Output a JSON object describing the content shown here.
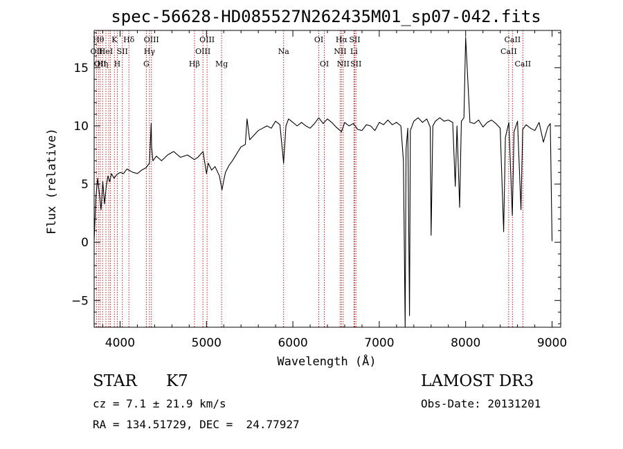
{
  "chart_data": {
    "type": "line",
    "title": "spec-56628-HD085527N262435M01_sp07-042.fits",
    "xlabel": "Wavelength (Å)",
    "ylabel": "Flux (relative)",
    "xlim": [
      3700,
      9100
    ],
    "ylim": [
      -7.3,
      18.2
    ],
    "xticks": [
      4000,
      5000,
      6000,
      7000,
      8000,
      9000
    ],
    "yticks": [
      -5,
      0,
      5,
      10,
      15
    ],
    "grid": false,
    "line_color": "#000000",
    "marker_color": "#b22222",
    "series": [
      {
        "x": [
          3700,
          3720,
          3740,
          3760,
          3780,
          3800,
          3820,
          3840,
          3860,
          3880,
          3900,
          3930,
          3960,
          4000,
          4040,
          4080,
          4100,
          4150,
          4200,
          4250,
          4300,
          4340,
          4360,
          4365,
          4380,
          4420,
          4480,
          4550,
          4620,
          4700,
          4780,
          4860,
          4900,
          4960,
          5000,
          5020,
          5060,
          5100,
          5150,
          5180,
          5200,
          5220,
          5260,
          5300,
          5350,
          5400,
          5450,
          5470,
          5500,
          5550,
          5600,
          5650,
          5700,
          5750,
          5800,
          5850,
          5893,
          5920,
          5950,
          6000,
          6050,
          6100,
          6150,
          6200,
          6250,
          6300,
          6350,
          6400,
          6450,
          6500,
          6563,
          6600,
          6650,
          6700,
          6750,
          6800,
          6850,
          6900,
          6950,
          7000,
          7050,
          7100,
          7150,
          7200,
          7250,
          7280,
          7300,
          7310,
          7330,
          7350,
          7360,
          7400,
          7450,
          7500,
          7550,
          7590,
          7600,
          7620,
          7650,
          7700,
          7750,
          7800,
          7850,
          7880,
          7900,
          7930,
          7950,
          7980,
          8000,
          8050,
          8100,
          8150,
          8200,
          8250,
          8300,
          8350,
          8400,
          8440,
          8460,
          8500,
          8540,
          8560,
          8600,
          8640,
          8660,
          8700,
          8750,
          8800,
          8850,
          8900,
          8950,
          8980,
          9000
        ],
        "y": [
          0.2,
          3.8,
          5.5,
          4.2,
          2.8,
          5.2,
          3.3,
          4.8,
          5.7,
          5.2,
          5.9,
          5.5,
          5.8,
          6.0,
          5.9,
          6.3,
          6.2,
          6.0,
          5.9,
          6.2,
          6.4,
          6.8,
          10.2,
          8.2,
          7.0,
          7.4,
          7.0,
          7.5,
          7.8,
          7.3,
          7.5,
          7.1,
          7.3,
          7.8,
          5.9,
          6.8,
          6.2,
          6.5,
          5.7,
          4.5,
          5.3,
          6.0,
          6.6,
          7.0,
          7.6,
          8.2,
          8.4,
          10.6,
          8.8,
          9.2,
          9.6,
          9.8,
          10.0,
          9.8,
          10.4,
          10.1,
          6.8,
          10.0,
          10.6,
          10.3,
          10.0,
          10.3,
          10.0,
          9.8,
          10.2,
          10.7,
          10.2,
          10.6,
          10.3,
          9.9,
          9.5,
          10.3,
          10.0,
          10.2,
          9.7,
          9.6,
          10.1,
          10.0,
          9.6,
          10.3,
          10.1,
          10.5,
          10.1,
          10.3,
          10.0,
          7.0,
          -7.3,
          8.0,
          9.8,
          -6.3,
          9.6,
          10.4,
          10.7,
          10.3,
          10.6,
          9.9,
          0.6,
          10.0,
          10.4,
          10.7,
          10.4,
          10.5,
          10.3,
          4.8,
          10.0,
          3.0,
          10.4,
          10.7,
          17.6,
          10.3,
          10.2,
          10.5,
          9.9,
          10.3,
          10.5,
          10.2,
          9.8,
          0.9,
          9.0,
          10.3,
          2.3,
          9.5,
          10.4,
          2.8,
          9.7,
          10.1,
          9.8,
          9.6,
          10.3,
          8.6,
          9.9,
          10.2,
          0.1
        ]
      }
    ],
    "lines": [
      {
        "x": 3727,
        "label": "OII",
        "row": 2
      },
      {
        "x": 3750,
        "label": "Hθ",
        "row": 1
      },
      {
        "x": 3770,
        "label": "OII",
        "row": 3
      },
      {
        "x": 3798,
        "label": "Hη",
        "row": 3
      },
      {
        "x": 3836,
        "label": "HeI",
        "row": 2
      },
      {
        "x": 3869,
        "label": "",
        "row": 0
      },
      {
        "x": 3889,
        "label": "",
        "row": 0
      },
      {
        "x": 3934,
        "label": "K",
        "row": 1
      },
      {
        "x": 3968,
        "label": "H",
        "row": 3
      },
      {
        "x": 4026,
        "label": "SII",
        "row": 2
      },
      {
        "x": 4102,
        "label": "Hδ",
        "row": 1
      },
      {
        "x": 4304,
        "label": "G",
        "row": 3
      },
      {
        "x": 4340,
        "label": "Hγ",
        "row": 2
      },
      {
        "x": 4363,
        "label": "OIII",
        "row": 1
      },
      {
        "x": 4861,
        "label": "Hβ",
        "row": 3
      },
      {
        "x": 4959,
        "label": "OIII",
        "row": 2
      },
      {
        "x": 5007,
        "label": "OIII",
        "row": 1
      },
      {
        "x": 5175,
        "label": "Mg",
        "row": 3
      },
      {
        "x": 5893,
        "label": "Na",
        "row": 2
      },
      {
        "x": 6300,
        "label": "OI",
        "row": 1
      },
      {
        "x": 6364,
        "label": "OI",
        "row": 3
      },
      {
        "x": 6548,
        "label": "NII",
        "row": 2
      },
      {
        "x": 6563,
        "label": "Hα",
        "row": 1
      },
      {
        "x": 6583,
        "label": "NII",
        "row": 3
      },
      {
        "x": 6707,
        "label": "Li",
        "row": 2
      },
      {
        "x": 6716,
        "label": "SII",
        "row": 1
      },
      {
        "x": 6730,
        "label": "SII",
        "row": 3
      },
      {
        "x": 8498,
        "label": "CaII",
        "row": 2
      },
      {
        "x": 8542,
        "label": "CaII",
        "row": 1
      },
      {
        "x": 8662,
        "label": "CaII",
        "row": 3
      }
    ]
  },
  "info": {
    "object_class": "STAR",
    "subclass": "K7",
    "survey": "LAMOST DR3",
    "cz_line": "cz = 7.1 ± 21.9 km/s",
    "obs_date": "Obs-Date: 20131201",
    "radec": "RA = 134.51729, DEC =  24.77927"
  }
}
